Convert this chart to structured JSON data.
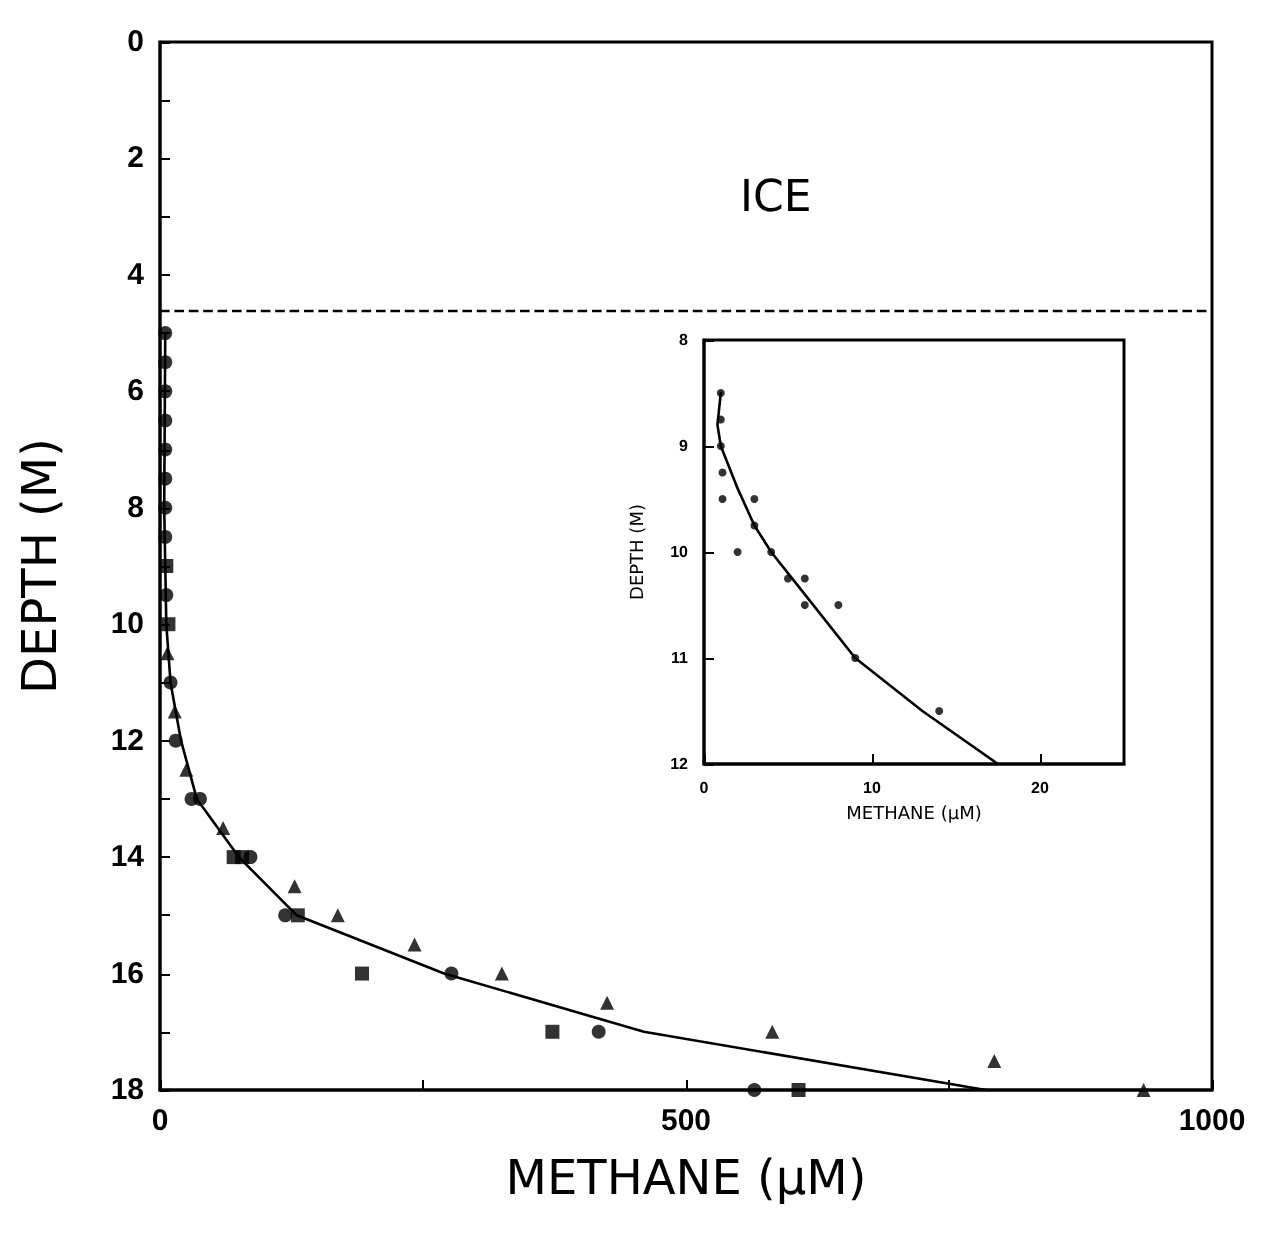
{
  "chart_data": [
    {
      "type": "scatter",
      "xlabel": "METHANE (μM)",
      "ylabel": "DEPTH (M)",
      "xlim": [
        0,
        1000
      ],
      "xticks": [
        0,
        {
          "value": 250,
          "label": null
        },
        500,
        {
          "value": 750,
          "label": null
        },
        1000
      ],
      "ylim": [
        18,
        0
      ],
      "yticks": [
        0,
        {
          "value": 1,
          "label": null
        },
        2,
        {
          "value": 3,
          "label": null
        },
        4,
        {
          "value": 5,
          "label": null
        },
        6,
        {
          "value": 7,
          "label": null
        },
        8,
        {
          "value": 9,
          "label": null
        },
        10,
        {
          "value": 11,
          "label": null
        },
        12,
        {
          "value": 13,
          "label": null
        },
        14,
        {
          "value": 15,
          "label": null
        },
        16,
        {
          "value": 17,
          "label": null
        },
        18
      ],
      "grid": false,
      "annotations": [
        "ICE"
      ],
      "series": [
        {
          "marker": "circle",
          "color": "#000000",
          "x": [
            5,
            5,
            5,
            5,
            5,
            5,
            5,
            5,
            6,
            10,
            15,
            30,
            38,
            86,
            119,
            277,
            417,
            565
          ],
          "values": [
            5,
            5.5,
            6,
            6.5,
            7,
            7.5,
            8,
            8.5,
            9.5,
            11,
            12,
            13,
            13,
            14,
            15,
            16,
            17,
            18
          ]
        },
        {
          "marker": "square",
          "color": "#000000",
          "x": [
            6,
            8,
            70,
            78,
            131,
            192,
            373,
            607
          ],
          "values": [
            9,
            10,
            14,
            14,
            15,
            16,
            17,
            18
          ]
        },
        {
          "marker": "triangle",
          "color": "#000000",
          "x": [
            7,
            14,
            25,
            60,
            128,
            169,
            242,
            325,
            425,
            582,
            793,
            935
          ],
          "values": [
            10.5,
            11.5,
            12.5,
            13.5,
            14.5,
            15,
            15.5,
            16,
            16.5,
            17,
            17.5,
            18
          ]
        },
        {
          "type": "line",
          "marker": "none",
          "line_style": "solid",
          "color": "#000000",
          "x": [
            5,
            4,
            6,
            10,
            20,
            35,
            75,
            130,
            270,
            460,
            785
          ],
          "values": [
            5,
            8,
            10,
            11,
            12,
            13,
            14,
            15,
            16,
            17,
            18
          ]
        }
      ],
      "ref_lines": [
        {
          "axis": "y",
          "value": 4.6,
          "line_style": "dashed",
          "color": "#000000"
        }
      ]
    },
    {
      "type": "scatter",
      "xlabel": "METHANE (μM)",
      "ylabel": "DEPTH (M)",
      "xlim": [
        0,
        25
      ],
      "xticks": [
        0,
        10,
        20
      ],
      "ylim": [
        12,
        8
      ],
      "yticks": [
        8,
        9,
        10,
        11,
        12
      ],
      "grid": false,
      "series": [
        {
          "marker": "circle",
          "color": "#000000",
          "x": [
            1,
            1,
            1,
            1.1,
            1.1,
            3,
            3,
            2,
            4,
            5,
            6,
            6,
            8,
            9,
            14
          ],
          "values": [
            8.5,
            8.75,
            9,
            9.25,
            9.5,
            9.5,
            9.75,
            10,
            10,
            10.25,
            10.25,
            10.5,
            10.5,
            11,
            11.5
          ]
        },
        {
          "type": "line",
          "marker": "none",
          "line_style": "solid",
          "color": "#000000",
          "x": [
            1,
            0.8,
            1,
            2,
            3,
            4,
            6,
            9,
            13,
            17.5
          ],
          "values": [
            8.5,
            8.8,
            9,
            9.4,
            9.75,
            10,
            10.4,
            11,
            11.5,
            12
          ]
        }
      ]
    }
  ]
}
